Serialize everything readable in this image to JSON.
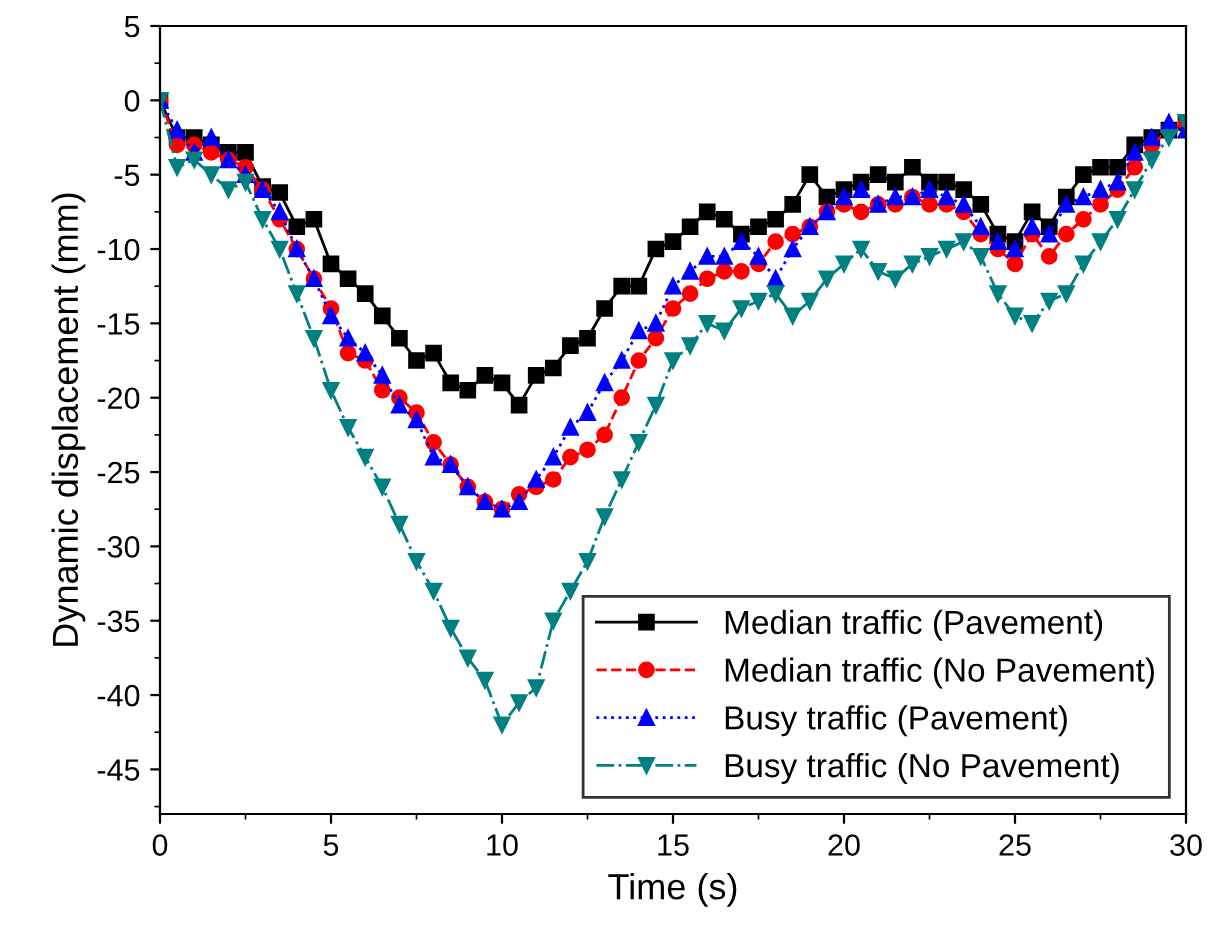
{
  "chart_data": {
    "type": "line",
    "xlabel": "Time (s)",
    "ylabel": "Dynamic displacement (mm)",
    "x": [
      0,
      0.5,
      1,
      1.5,
      2,
      2.5,
      3,
      3.5,
      4,
      4.5,
      5,
      5.5,
      6,
      6.5,
      7,
      7.5,
      8,
      8.5,
      9,
      9.5,
      10,
      10.5,
      11,
      11.5,
      12,
      12.5,
      13,
      13.5,
      14,
      14.5,
      15,
      15.5,
      16,
      16.5,
      17,
      17.5,
      18,
      18.5,
      19,
      19.5,
      20,
      20.5,
      21,
      21.5,
      22,
      22.5,
      23,
      23.5,
      24,
      24.5,
      25,
      25.5,
      26,
      26.5,
      27,
      27.5,
      28,
      28.5,
      29,
      29.5,
      30
    ],
    "series": [
      {
        "name": "Median traffic (Pavement)",
        "color": "#000000",
        "marker": "square",
        "line_style": "solid",
        "values": [
          0,
          -2.5,
          -2.5,
          -3,
          -3.5,
          -3.5,
          -5.8,
          -6.2,
          -8.5,
          -8,
          -11,
          -12,
          -13,
          -14.5,
          -16,
          -17.5,
          -17,
          -19,
          -19.5,
          -18.5,
          -19,
          -20.5,
          -18.5,
          -18,
          -16.5,
          -16,
          -14,
          -12.5,
          -12.5,
          -10,
          -9.5,
          -8.5,
          -7.5,
          -8,
          -9,
          -8.5,
          -8,
          -7,
          -5,
          -6.5,
          -6,
          -5.5,
          -5,
          -5.5,
          -4.5,
          -5.5,
          -5.5,
          -6,
          -7,
          -9,
          -9.5,
          -7.5,
          -8.5,
          -6.5,
          -5,
          -4.5,
          -4.5,
          -3,
          -2.5,
          -2,
          -1.5
        ]
      },
      {
        "name": "Median traffic (No Pavement)",
        "color": "#ff0000",
        "marker": "circle",
        "line_style": "dashed",
        "values": [
          0,
          -3,
          -3,
          -3.5,
          -4,
          -4.5,
          -6,
          -8,
          -10,
          -12,
          -14,
          -17,
          -17.5,
          -19.5,
          -20,
          -21,
          -23,
          -24.5,
          -26,
          -27,
          -27.5,
          -26.5,
          -26,
          -25.5,
          -24,
          -23.5,
          -22.5,
          -20,
          -17.5,
          -16,
          -14,
          -13,
          -12,
          -11.5,
          -11.5,
          -11,
          -9.5,
          -9,
          -8.5,
          -7.5,
          -7,
          -7.5,
          -7,
          -7,
          -6.5,
          -7,
          -7,
          -7.5,
          -9,
          -10,
          -11,
          -9,
          -10.5,
          -9,
          -8,
          -7,
          -6,
          -4.5,
          -3,
          -2,
          -1.5
        ]
      },
      {
        "name": "Busy traffic (Pavement)",
        "color": "#0000ff",
        "marker": "triangle",
        "line_style": "dotted",
        "values": [
          0,
          -2,
          -3.5,
          -2.5,
          -4,
          -5,
          -6,
          -7.5,
          -10,
          -12,
          -14.5,
          -16,
          -17,
          -18.5,
          -20.5,
          -21.5,
          -24,
          -24.5,
          -26,
          -27,
          -27.5,
          -27,
          -25.5,
          -24,
          -22,
          -21,
          -19,
          -17.5,
          -15.5,
          -15,
          -12.5,
          -11.5,
          -10.5,
          -10.5,
          -9.5,
          -10.5,
          -12,
          -10,
          -8.5,
          -7.5,
          -6.5,
          -6,
          -7,
          -6.5,
          -6.5,
          -6,
          -6.5,
          -7,
          -8.5,
          -9.5,
          -10,
          -8.5,
          -9,
          -7,
          -6.5,
          -6,
          -5.5,
          -3.5,
          -2.5,
          -1.5,
          -2
        ]
      },
      {
        "name": "Busy traffic (No Pavement)",
        "color": "#008080",
        "marker": "triangle_down",
        "line_style": "dashdot",
        "values": [
          0,
          -4.5,
          -4,
          -5,
          -6,
          -5.5,
          -8,
          -10,
          -13,
          -16,
          -19.5,
          -22,
          -24,
          -26,
          -28.5,
          -31,
          -33,
          -35.5,
          -37.5,
          -39,
          -42,
          -40.5,
          -39.5,
          -35,
          -33,
          -31,
          -28,
          -25.5,
          -23,
          -20.5,
          -17.5,
          -16.5,
          -15,
          -15.5,
          -14,
          -13.5,
          -13,
          -14.5,
          -13.5,
          -12,
          -11,
          -10,
          -11.5,
          -12,
          -11,
          -10.5,
          -10,
          -9.5,
          -10.5,
          -13,
          -14.5,
          -15,
          -13.5,
          -13,
          -11,
          -9.5,
          -8,
          -6,
          -4,
          -2.5,
          -1.5
        ]
      }
    ],
    "xlim": [
      0,
      30
    ],
    "xticks": [
      0,
      5,
      10,
      15,
      20,
      25,
      30
    ],
    "ylim": [
      -48,
      5
    ],
    "yticks": [
      -45,
      -40,
      -35,
      -30,
      -25,
      -20,
      -15,
      -10,
      -5,
      0,
      5
    ],
    "grid": false,
    "legend": "bottom right"
  }
}
